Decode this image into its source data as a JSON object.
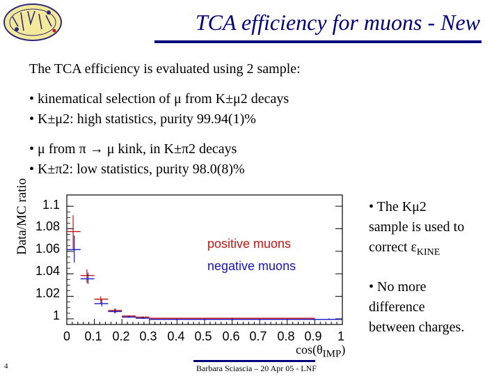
{
  "slide": {
    "title": "TCA efficiency for muons - New",
    "intro": "The TCA efficiency is evaluated using 2 sample:",
    "bullets": [
      "• kinematical selection of μ from K±μ2 decays",
      "• K±μ2: high statistics, purity 99.94(1)%",
      "• μ from π → μ kink, in K±π2 decays",
      "• K±π2: low statistics, purity 98.0(8)%"
    ],
    "side_notes": {
      "note1_line1": "• The Kμ2",
      "note1_line2": "sample is used to",
      "note1_line3_prefix": "correct ε",
      "note1_line3_sub": "KINE",
      "note2_line1": "• No more",
      "note2_line2": "difference",
      "note2_line3": "between charges."
    },
    "footer": "Barbara Sciascia – 20 Apr 05 - LNF",
    "page_number": "4"
  },
  "chart_data": {
    "type": "scatter",
    "xlabel_prefix": "cos(θ",
    "xlabel_sub": "IMP",
    "xlabel_suffix": ")",
    "ylabel": "Data/MC ratio",
    "xlim": [
      0,
      1
    ],
    "ylim": [
      0.995,
      1.11
    ],
    "xticks": [
      "0",
      "0.1",
      "0.2",
      "0.3",
      "0.4",
      "0.5",
      "0.6",
      "0.7",
      "0.8",
      "0.9",
      "1"
    ],
    "yticks": [
      "1.1",
      "1.08",
      "1.06",
      "1.04",
      "1.02",
      "1"
    ],
    "ytick_values": [
      1.1,
      1.08,
      1.06,
      1.04,
      1.02,
      1.0
    ],
    "series": [
      {
        "name": "positive muons",
        "color": "#c41414",
        "points": [
          {
            "x0": 0.0,
            "x1": 0.05,
            "y": 1.077,
            "err": 0.015
          },
          {
            "x0": 0.05,
            "x1": 0.1,
            "y": 1.038,
            "err": 0.006
          },
          {
            "x0": 0.1,
            "x1": 0.15,
            "y": 1.017,
            "err": 0.003
          },
          {
            "x0": 0.15,
            "x1": 0.2,
            "y": 1.007,
            "err": 0.002
          },
          {
            "x0": 0.2,
            "x1": 0.25,
            "y": 1.002,
            "err": 0.001
          },
          {
            "x0": 0.25,
            "x1": 0.3,
            "y": 1.001,
            "err": 0.001
          },
          {
            "x0": 0.3,
            "x1": 0.9,
            "y": 1.0,
            "err": 0.0005
          }
        ]
      },
      {
        "name": "negative muons",
        "color": "#1414c4",
        "points": [
          {
            "x0": 0.0,
            "x1": 0.05,
            "y": 1.062,
            "err": 0.012
          },
          {
            "x0": 0.05,
            "x1": 0.1,
            "y": 1.036,
            "err": 0.005
          },
          {
            "x0": 0.1,
            "x1": 0.15,
            "y": 1.014,
            "err": 0.003
          },
          {
            "x0": 0.15,
            "x1": 0.2,
            "y": 1.007,
            "err": 0.002
          },
          {
            "x0": 0.2,
            "x1": 0.25,
            "y": 1.002,
            "err": 0.001
          },
          {
            "x0": 0.25,
            "x1": 0.3,
            "y": 1.001,
            "err": 0.001
          },
          {
            "x0": 0.3,
            "x1": 0.9,
            "y": 1.0,
            "err": 0.0005
          },
          {
            "x0": 0.9,
            "x1": 1.0,
            "y": 1.0,
            "err": 0.0005
          }
        ]
      }
    ]
  }
}
